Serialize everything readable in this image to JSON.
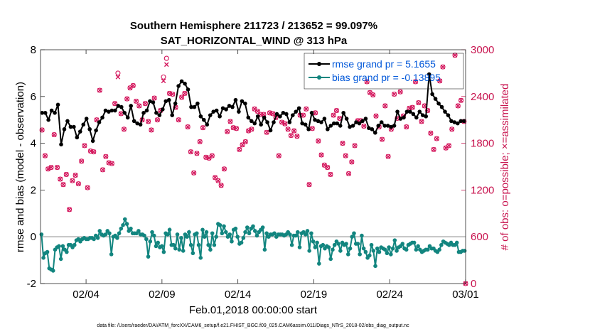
{
  "chart_data": {
    "type": "line",
    "title": "Southern Hemisphere 211723 / 213652 = 99.097%",
    "subtitle": "SAT_HORIZONTAL_WIND @ 313 hPa",
    "xlabel": "Feb.01,2018 00:00:00 start",
    "ylabel_left": "rmse and bias (model - observation)",
    "ylabel_right": "# of obs: o=possible; ×=assimilated",
    "footnote": "data file: /Users/raeder/DAI/ATM_forcXX/CAM6_setup/f.e21.FHIST_BGC.f09_025.CAM6assim.011/Diags_NTrS_2018-02/obs_diag_output.nc",
    "xlim": [
      0,
      28
    ],
    "ylim_left": [
      -2,
      8
    ],
    "ylim_right": [
      0,
      3000
    ],
    "xticks": [
      3,
      8,
      13,
      18,
      23,
      28
    ],
    "xtick_labels": [
      "02/04",
      "02/09",
      "02/14",
      "02/19",
      "02/24",
      "03/01"
    ],
    "yticks_left": [
      -2,
      0,
      2,
      4,
      6,
      8
    ],
    "yticks_left_labels": [
      "-2",
      "0",
      "2",
      "4",
      "6",
      "8"
    ],
    "yticks_right": [
      0,
      600,
      1200,
      1800,
      2400,
      3000
    ],
    "yticks_right_labels": [
      "0",
      "600",
      "1200",
      "1800",
      "2400",
      "3000"
    ],
    "zero_line": 0,
    "legend_location": "top-right",
    "colors": {
      "rmse": "#000000",
      "bias": "#12857f",
      "obs": "#d3135a",
      "zero": "#b4b4b4"
    },
    "series": [
      {
        "name": "rmse grand pr = 5.1655",
        "axis": "left",
        "values": [
          5.3,
          5.3,
          5.0,
          5.4,
          5.3,
          5.65,
          3.95,
          4.6,
          4.95,
          4.7,
          4.7,
          4.25,
          4.5,
          4.8,
          5.05,
          4.6,
          4.1,
          4.55,
          4.9,
          5.1,
          5.4,
          5.35,
          5.4,
          5.4,
          5.6,
          5.55,
          5.3,
          5.1,
          5.6,
          4.95,
          4.85,
          4.8,
          5.3,
          5.4,
          5.8,
          5.75,
          5.3,
          5.2,
          5.45,
          5.8,
          5.85,
          5.2,
          5.7,
          6.45,
          6.65,
          6.55,
          6.3,
          5.55,
          5.55,
          5.7,
          5.15,
          5.0,
          4.8,
          5.2,
          5.35,
          5.4,
          5.15,
          5.5,
          5.45,
          5.6,
          5.55,
          5.85,
          5.35,
          5.8,
          5.7,
          5.1,
          4.95,
          4.85,
          5.15,
          4.8,
          5.1,
          4.9,
          4.55,
          4.9,
          5.25,
          5.15,
          5.3,
          5.25,
          4.9,
          5.2,
          5.35,
          5.5,
          4.85,
          4.8,
          4.6,
          5.3,
          5.0,
          4.95,
          4.9,
          5.05,
          4.6,
          4.75,
          4.85,
          4.85,
          4.75,
          5.3,
          5.05,
          4.7,
          4.75,
          4.9,
          4.85,
          4.95,
          5.05,
          4.65,
          4.6,
          4.45,
          4.75,
          4.9,
          4.75,
          4.75,
          4.7,
          4.75,
          5.35,
          5.05,
          5.1,
          5.35,
          5.35,
          5.25,
          5.1,
          5.35,
          5.2,
          5.15,
          6.95,
          6.1,
          5.9,
          5.7,
          5.55,
          5.35,
          5.2,
          4.95,
          4.9,
          4.85,
          4.95,
          4.95
        ]
      },
      {
        "name": "bias grand pr = -0.13895",
        "axis": "left",
        "values": [
          0.1,
          -0.9,
          -0.7,
          -0.65,
          -1.35,
          -1.4,
          -1.45,
          -0.55,
          -0.45,
          -0.4,
          -0.95,
          -0.4,
          -0.55,
          -0.65,
          -0.35,
          -0.35,
          -0.45,
          -0.35,
          -0.15,
          -0.1,
          -0.2,
          -0.1,
          -0.05,
          -0.1,
          -0.1,
          -0.05,
          -0.05,
          -0.1,
          0.05,
          -0.05,
          0.25,
          0.1,
          0.05,
          0.1,
          0.25,
          0.15,
          -0.75,
          0.0,
          0.05,
          -0.05,
          0.15,
          0.35,
          0.5,
          0.75,
          0.55,
          0.25,
          0.35,
          0.15,
          0.15,
          0.15,
          0.25,
          0.1,
          0.1,
          0.05,
          -0.1,
          -0.85,
          -0.2,
          0.2,
          0.05,
          -0.4,
          -0.25,
          -0.45,
          -0.4,
          -0.65,
          0.15,
          0.1,
          0.3,
          -0.35,
          -0.35,
          -0.5,
          0.1,
          -0.55,
          -0.05,
          -0.6,
          0.1,
          0.0,
          0.2,
          -0.35,
          -0.7,
          0.1,
          0.15,
          -0.35,
          -0.9,
          0.3,
          0.0,
          0.2,
          -0.35,
          -0.55,
          0.15,
          -0.35,
          0.0,
          0.55,
          0.5,
          0.15,
          0.45,
          0.2,
          0.0,
          0.1,
          -0.2,
          0.3,
          0.35,
          0.0,
          -0.3,
          -0.25,
          -0.05,
          0.2,
          0.4,
          0.15,
          0.35,
          0.45,
          0.25,
          0.05,
          0.2,
          0.3,
          0.4,
          -0.55,
          0.15,
          0.0,
          0.1,
          0.1,
          0.15,
          0.0,
          0.1,
          0.1,
          0.1,
          0.05,
          0.1,
          0.2,
          0.1,
          -0.35,
          0.05,
          0.05,
          0.2,
          -0.45,
          0.15,
          0.2,
          0.1,
          0.25,
          -0.6,
          0.15,
          -0.2,
          -0.45,
          -0.25,
          -1.15,
          -0.4,
          -0.35,
          -0.5,
          -0.4,
          -0.45,
          -0.95,
          -0.55,
          -0.35,
          -0.2,
          -0.3,
          -0.6,
          -0.25,
          -0.35,
          -0.3,
          -0.75,
          -0.5,
          0.0,
          0.15,
          -0.3,
          -0.3,
          -0.75,
          0.05,
          -0.5,
          -0.65,
          -0.9,
          -0.8,
          -0.35,
          -0.6,
          -1.25,
          -0.5,
          -0.65,
          -0.45,
          -0.5,
          -0.55,
          -0.7,
          -0.45,
          -0.75,
          -0.5,
          -0.15,
          -0.6,
          -0.45,
          -0.4,
          -0.3,
          -0.5,
          -0.55,
          -0.35,
          -0.3,
          -0.25,
          -0.25,
          -0.55,
          -0.4,
          -0.55,
          -0.65,
          -0.6,
          -0.55,
          -0.55,
          -0.4,
          -0.5,
          -0.5,
          -0.6,
          -0.65,
          -0.55,
          -0.35,
          -0.2,
          -0.25,
          -0.3,
          -0.35,
          -0.25,
          -0.35,
          -0.35,
          -0.25,
          -0.65,
          -0.65,
          -0.6,
          -0.6
        ]
      },
      {
        "name": "# of obs possible",
        "axis": "right",
        "values": [
          1970,
          1640,
          1470,
          1490,
          1910,
          1490,
          1340,
          1270,
          1400,
          950,
          1320,
          1390,
          1280,
          1570,
          1770,
          1230,
          1700,
          1690,
          2100,
          2480,
          1460,
          1630,
          1550,
          1540,
          2310,
          2700,
          2180,
          1980,
          2370,
          2510,
          2540,
          2340,
          2280,
          2100,
          2310,
          2080,
          1970,
          2380,
          2100,
          2220,
          2650,
          2890,
          2440,
          2430,
          2260,
          2100,
          2390,
          2440,
          2010,
          1690,
          1420,
          1670,
          1820,
          2000,
          1620,
          1610,
          1640,
          1360,
          1320,
          1260,
          1470,
          1950,
          2080,
          2000,
          1990,
          1720,
          1780,
          1820,
          1960,
          1980,
          2240,
          2210,
          2170,
          2170,
          1940,
          2190,
          2180,
          2130,
          1640,
          2070,
          2050,
          1980,
          1900,
          1960,
          1890,
          2160,
          2160,
          2240,
          1270,
          1990,
          2190,
          1830,
          1650,
          1520,
          1490,
          1400,
          2160,
          2220,
          2120,
          1800,
          1640,
          1410,
          1560,
          1770,
          2090,
          2090,
          2020,
          2590,
          2450,
          2420,
          2150,
          2010,
          1850,
          2280,
          1630,
          1980,
          2430,
          2120,
          2460,
          2150,
          2010,
          2250,
          2260,
          2590,
          2320,
          2080,
          2280,
          2220,
          1930,
          1720,
          1860,
          2600,
          2780,
          1740,
          1770,
          1980,
          2930,
          2280,
          2350,
          2080
        ]
      },
      {
        "name": "# of obs assimilated",
        "axis": "right",
        "values": [
          1970,
          1640,
          1470,
          1490,
          1910,
          1490,
          1340,
          1270,
          1400,
          950,
          1320,
          1390,
          1280,
          1570,
          1770,
          1230,
          1700,
          1690,
          2100,
          2480,
          1460,
          1630,
          1550,
          1540,
          2310,
          2650,
          2180,
          1980,
          2370,
          2510,
          2540,
          2340,
          2280,
          2100,
          2310,
          2080,
          1970,
          2380,
          2100,
          2220,
          2600,
          2810,
          2440,
          2430,
          2260,
          2100,
          2390,
          2440,
          2010,
          1690,
          1420,
          1670,
          1820,
          2000,
          1620,
          1610,
          1640,
          1360,
          1320,
          1260,
          1470,
          1950,
          2080,
          2000,
          1990,
          1720,
          1780,
          1820,
          1960,
          1980,
          2240,
          2210,
          2170,
          2170,
          1940,
          2190,
          2180,
          2130,
          1640,
          2070,
          2050,
          1980,
          1900,
          1960,
          1890,
          2160,
          2160,
          2240,
          1270,
          1990,
          2190,
          1830,
          1650,
          1520,
          1490,
          1400,
          2160,
          2220,
          2120,
          1800,
          1640,
          1410,
          1560,
          1770,
          2090,
          2090,
          2020,
          2590,
          2450,
          2420,
          2150,
          2010,
          1850,
          2280,
          1630,
          1980,
          2430,
          2120,
          2460,
          2150,
          2010,
          2250,
          2260,
          2590,
          2320,
          2080,
          2280,
          2220,
          1930,
          1720,
          1860,
          2600,
          2780,
          1740,
          1770,
          1980,
          2930,
          2280,
          2350,
          2080
        ]
      }
    ]
  }
}
